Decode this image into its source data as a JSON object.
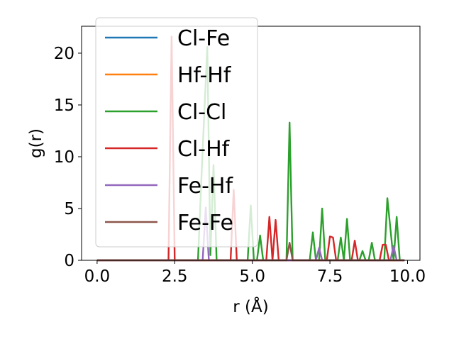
{
  "chart_data": {
    "type": "line",
    "xlabel": "r (Å)",
    "ylabel": "g(r)",
    "xlim": [
      -0.5,
      10.4
    ],
    "ylim": [
      0,
      22.6
    ],
    "xticks": [
      0.0,
      2.5,
      5.0,
      7.5,
      10.0
    ],
    "xtick_labels": [
      "0.0",
      "2.5",
      "5.0",
      "7.5",
      "10.0"
    ],
    "yticks": [
      0,
      5,
      10,
      15,
      20
    ],
    "ytick_labels": [
      "0",
      "5",
      "10",
      "15",
      "20"
    ],
    "grid": false,
    "legend_position": "upper-left",
    "series": [
      {
        "name": "Cl-Fe",
        "color": "#1f77b4",
        "points": [
          [
            0.0,
            0
          ],
          [
            9.9,
            0
          ]
        ]
      },
      {
        "name": "Hf-Hf",
        "color": "#ff7f0e",
        "points": [
          [
            0.0,
            0
          ],
          [
            9.9,
            0
          ]
        ]
      },
      {
        "name": "Cl-Cl",
        "color": "#2ca02c",
        "points": [
          [
            0.0,
            0
          ],
          [
            3.25,
            0
          ],
          [
            3.35,
            7.2
          ],
          [
            3.45,
            14.0
          ],
          [
            3.55,
            20.6
          ],
          [
            3.65,
            0.5
          ],
          [
            3.75,
            9.2
          ],
          [
            3.85,
            0
          ],
          [
            4.85,
            0
          ],
          [
            4.95,
            5.3
          ],
          [
            5.05,
            0
          ],
          [
            5.15,
            0
          ],
          [
            5.25,
            2.4
          ],
          [
            5.35,
            0
          ],
          [
            6.1,
            0
          ],
          [
            6.2,
            13.3
          ],
          [
            6.3,
            0
          ],
          [
            6.85,
            0
          ],
          [
            6.95,
            2.7
          ],
          [
            7.05,
            0
          ],
          [
            7.15,
            0
          ],
          [
            7.25,
            5.0
          ],
          [
            7.35,
            0
          ],
          [
            7.75,
            0
          ],
          [
            7.85,
            2.2
          ],
          [
            7.95,
            0
          ],
          [
            8.05,
            4.0
          ],
          [
            8.15,
            0
          ],
          [
            8.45,
            0
          ],
          [
            8.55,
            0.9
          ],
          [
            8.65,
            0
          ],
          [
            8.75,
            0
          ],
          [
            8.85,
            1.7
          ],
          [
            8.95,
            0
          ],
          [
            9.25,
            0
          ],
          [
            9.35,
            6.0
          ],
          [
            9.45,
            3.0
          ],
          [
            9.55,
            0
          ],
          [
            9.65,
            4.2
          ],
          [
            9.75,
            0
          ],
          [
            9.9,
            0
          ]
        ]
      },
      {
        "name": "Cl-Hf",
        "color": "#d62728",
        "points": [
          [
            0.0,
            0
          ],
          [
            2.3,
            0
          ],
          [
            2.4,
            21.6
          ],
          [
            2.5,
            0
          ],
          [
            4.3,
            0
          ],
          [
            4.4,
            6.8
          ],
          [
            4.5,
            0
          ],
          [
            5.45,
            0
          ],
          [
            5.55,
            4.2
          ],
          [
            5.65,
            0
          ],
          [
            5.75,
            3.9
          ],
          [
            5.85,
            0
          ],
          [
            7.4,
            0
          ],
          [
            7.5,
            2.3
          ],
          [
            7.6,
            2.2
          ],
          [
            7.7,
            0
          ],
          [
            8.2,
            0
          ],
          [
            8.3,
            1.9
          ],
          [
            8.4,
            0
          ],
          [
            9.1,
            0
          ],
          [
            9.2,
            1.5
          ],
          [
            9.3,
            1.5
          ],
          [
            9.4,
            0
          ],
          [
            9.9,
            0
          ]
        ]
      },
      {
        "name": "Fe-Hf",
        "color": "#9467bd",
        "points": [
          [
            0.0,
            0
          ],
          [
            3.4,
            0
          ],
          [
            3.5,
            5.1
          ],
          [
            3.6,
            0
          ],
          [
            7.05,
            0
          ],
          [
            7.15,
            1.2
          ],
          [
            7.25,
            0
          ],
          [
            9.45,
            0
          ],
          [
            9.55,
            1.4
          ],
          [
            9.65,
            0
          ],
          [
            9.9,
            0
          ]
        ]
      },
      {
        "name": "Fe-Fe",
        "color": "#8c564b",
        "points": [
          [
            0.0,
            0
          ],
          [
            6.1,
            0
          ],
          [
            6.2,
            1.7
          ],
          [
            6.3,
            0
          ],
          [
            9.9,
            0
          ]
        ]
      }
    ]
  }
}
